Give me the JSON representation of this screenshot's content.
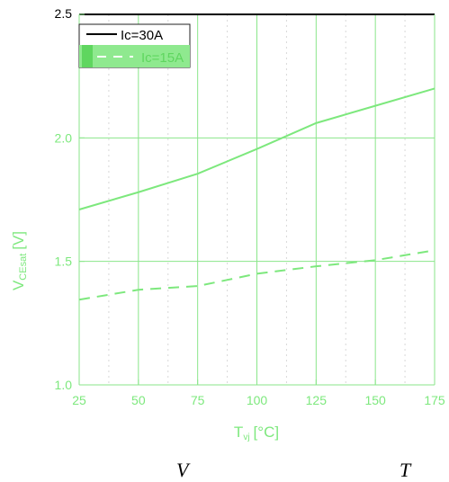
{
  "chart_data": {
    "type": "line",
    "x": [
      25,
      50,
      75,
      100,
      125,
      150,
      175
    ],
    "xlim": [
      25,
      175
    ],
    "ylim": [
      1.0,
      2.5
    ],
    "x_ticks": [
      "25",
      "50",
      "75",
      "100",
      "125",
      "150",
      "175"
    ],
    "y_ticks": [
      "1.0",
      "1.5",
      "2.0",
      "2.5"
    ],
    "xlabel": "T",
    "xlabel_sub": "vj",
    "xlabel_unit": "[°C]",
    "ylabel": "V",
    "ylabel_sub": "CEsat",
    "ylabel_unit": "[V]",
    "grid": true,
    "legend_position": "top-left",
    "series": [
      {
        "name": "Ic=30A",
        "style": "solid",
        "values": [
          1.71,
          1.78,
          1.855,
          1.955,
          2.06,
          2.13,
          2.2
        ]
      },
      {
        "name": "Ic=15A",
        "style": "dashed",
        "values": [
          1.345,
          1.385,
          1.4,
          1.45,
          1.48,
          1.505,
          1.545
        ]
      }
    ],
    "footer_letters": [
      "V",
      "T"
    ]
  },
  "colors": {
    "accent": "#7de87d",
    "grid": "#8ae68a",
    "frame_top": "#000000",
    "legend_highlight": "#8fe98f",
    "legend_swatch": "#5fd65f",
    "legend_line_30": "#000000",
    "legend_line_15": "#ffffff",
    "legend_text_30": "#000000",
    "legend_text_15": "#5fd65f"
  }
}
